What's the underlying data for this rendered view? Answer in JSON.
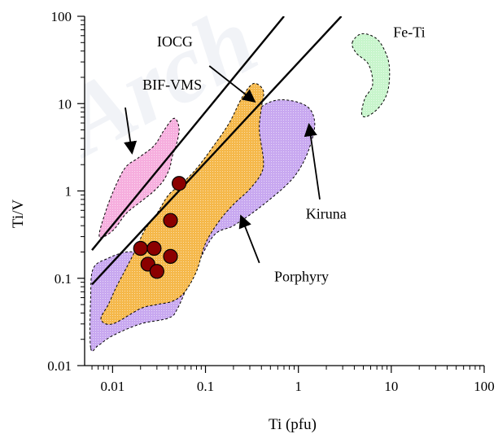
{
  "chart_data": {
    "type": "scatter",
    "title": "",
    "xlabel": "Ti (pfu)",
    "ylabel": "Ti/V",
    "xscale": "log",
    "yscale": "log",
    "xlim": [
      0.005,
      100
    ],
    "ylim": [
      0.01,
      100
    ],
    "xticks": [
      {
        "v": 0.01,
        "label": "0.01"
      },
      {
        "v": 0.1,
        "label": "0.1"
      },
      {
        "v": 1,
        "label": "1"
      },
      {
        "v": 10,
        "label": "10"
      },
      {
        "v": 100,
        "label": "100"
      }
    ],
    "yticks": [
      {
        "v": 0.01,
        "label": "0.01"
      },
      {
        "v": 0.1,
        "label": "0.1"
      },
      {
        "v": 1,
        "label": "1"
      },
      {
        "v": 10,
        "label": "10"
      },
      {
        "v": 100,
        "label": "100"
      }
    ],
    "fields": [
      {
        "name": "Kiruna",
        "color": "#c8a8f0",
        "polygon": [
          [
            0.0058,
            0.016
          ],
          [
            0.0058,
            0.06
          ],
          [
            0.0062,
            0.13
          ],
          [
            0.009,
            0.17
          ],
          [
            0.014,
            0.2
          ],
          [
            0.022,
            0.2
          ],
          [
            0.035,
            0.25
          ],
          [
            0.05,
            0.33
          ],
          [
            0.08,
            0.5
          ],
          [
            0.12,
            0.65
          ],
          [
            0.18,
            0.8
          ],
          [
            0.23,
            1.5
          ],
          [
            0.28,
            4
          ],
          [
            0.35,
            8
          ],
          [
            0.6,
            11
          ],
          [
            1.2,
            9.5
          ],
          [
            1.5,
            6
          ],
          [
            1.3,
            3
          ],
          [
            1,
            1.7
          ],
          [
            0.7,
            1.1
          ],
          [
            0.35,
            0.6
          ],
          [
            0.2,
            0.4
          ],
          [
            0.12,
            0.3
          ],
          [
            0.07,
            0.1
          ],
          [
            0.05,
            0.045
          ],
          [
            0.04,
            0.035
          ],
          [
            0.02,
            0.03
          ],
          [
            0.01,
            0.022
          ],
          [
            0.007,
            0.017
          ]
        ]
      },
      {
        "name": "Porphyry",
        "color": "#f5b84a",
        "polygon": [
          [
            0.0075,
            0.034
          ],
          [
            0.009,
            0.05
          ],
          [
            0.011,
            0.08
          ],
          [
            0.014,
            0.13
          ],
          [
            0.018,
            0.22
          ],
          [
            0.022,
            0.35
          ],
          [
            0.03,
            0.55
          ],
          [
            0.04,
            0.9
          ],
          [
            0.055,
            1.2
          ],
          [
            0.08,
            1.8
          ],
          [
            0.12,
            3.2
          ],
          [
            0.18,
            6
          ],
          [
            0.25,
            12
          ],
          [
            0.33,
            17
          ],
          [
            0.42,
            14
          ],
          [
            0.4,
            9
          ],
          [
            0.38,
            5
          ],
          [
            0.42,
            2.3
          ],
          [
            0.4,
            1.6
          ],
          [
            0.3,
            1.05
          ],
          [
            0.2,
            0.7
          ],
          [
            0.14,
            0.45
          ],
          [
            0.1,
            0.25
          ],
          [
            0.08,
            0.12
          ],
          [
            0.06,
            0.07
          ],
          [
            0.045,
            0.055
          ],
          [
            0.03,
            0.05
          ],
          [
            0.02,
            0.045
          ],
          [
            0.01,
            0.03
          ]
        ]
      },
      {
        "name": "BIF-VMS",
        "color": "#f6aede",
        "polygon": [
          [
            0.0072,
            0.3
          ],
          [
            0.0085,
            0.6
          ],
          [
            0.011,
            1.2
          ],
          [
            0.014,
            1.9
          ],
          [
            0.019,
            2.4
          ],
          [
            0.028,
            3.3
          ],
          [
            0.036,
            5
          ],
          [
            0.046,
            6.8
          ],
          [
            0.052,
            5.2
          ],
          [
            0.049,
            3.5
          ],
          [
            0.044,
            2.5
          ],
          [
            0.041,
            1.8
          ],
          [
            0.035,
            1.3
          ],
          [
            0.028,
            1.0
          ],
          [
            0.02,
            0.75
          ],
          [
            0.014,
            0.55
          ],
          [
            0.01,
            0.35
          ]
        ]
      },
      {
        "name": "Fe-Ti",
        "color": "#c8f5cc",
        "polygon": [
          [
            3.8,
            50
          ],
          [
            4.8,
            63
          ],
          [
            7,
            55
          ],
          [
            9,
            35
          ],
          [
            9.6,
            22
          ],
          [
            9,
            13
          ],
          [
            7.2,
            8.8
          ],
          [
            5.4,
            7.1
          ],
          [
            4.8,
            7.7
          ],
          [
            5.2,
            11.5
          ],
          [
            6.3,
            16.5
          ],
          [
            5.7,
            28
          ],
          [
            4.2,
            38
          ]
        ]
      }
    ],
    "lines": [
      {
        "name": "IOCG-upper",
        "points": [
          [
            0.006,
            0.21
          ],
          [
            0.7,
            100
          ]
        ]
      },
      {
        "name": "IOCG-lower",
        "points": [
          [
            0.006,
            0.085
          ],
          [
            2.9,
            100
          ]
        ]
      }
    ],
    "points": [
      [
        0.052,
        1.22
      ],
      [
        0.042,
        0.46
      ],
      [
        0.02,
        0.22
      ],
      [
        0.028,
        0.22
      ],
      [
        0.024,
        0.145
      ],
      [
        0.03,
        0.12
      ],
      [
        0.042,
        0.178
      ]
    ],
    "point_color": "#8b0000",
    "annotations": [
      {
        "label": "IOCG",
        "text_at": [
          0.03,
          45
        ],
        "arrow_from": [
          0.11,
          27
        ],
        "arrow_to": [
          0.34,
          10.5
        ]
      },
      {
        "label": "BIF-VMS",
        "text_at": [
          0.021,
          14.5
        ],
        "arrow_from": [
          0.0137,
          9
        ],
        "arrow_to": [
          0.0162,
          2.7
        ]
      },
      {
        "label": "Fe-Ti",
        "text_at": [
          10.5,
          58
        ]
      },
      {
        "label": "Kiruna",
        "text_at": [
          1.2,
          0.48
        ],
        "arrow_from": [
          1.7,
          0.8
        ],
        "arrow_to": [
          1.3,
          5.8
        ]
      },
      {
        "label": "Porphyry",
        "text_at": [
          0.55,
          0.092
        ],
        "arrow_from": [
          0.38,
          0.15
        ],
        "arrow_to": [
          0.24,
          0.52
        ]
      }
    ],
    "watermark": "Arch"
  }
}
